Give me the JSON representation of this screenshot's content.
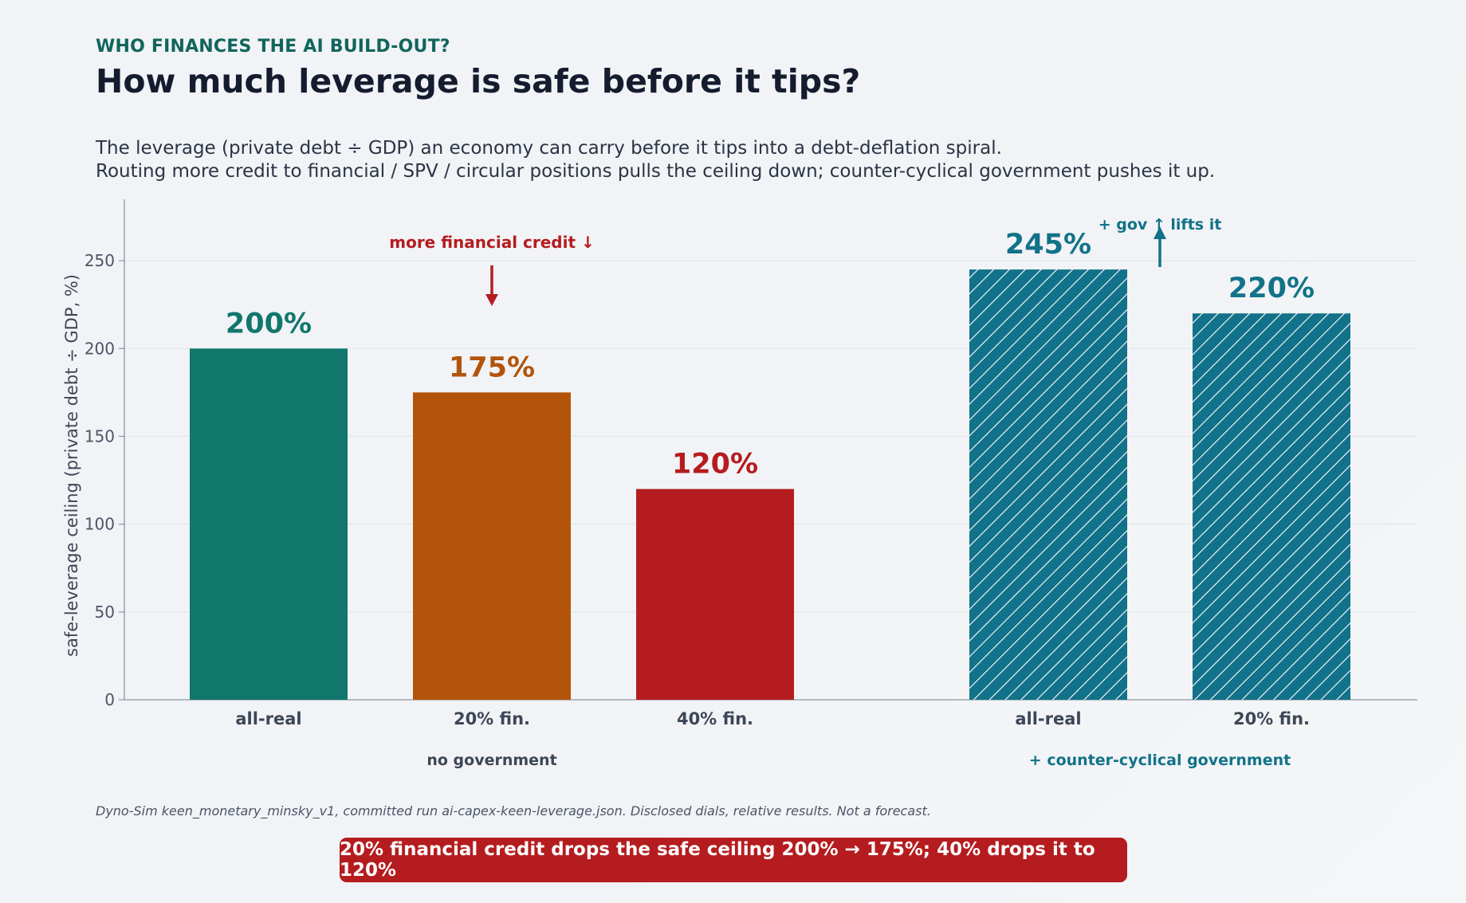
{
  "header": {
    "kicker": "WHO FINANCES THE AI BUILD-OUT?",
    "title": "How much leverage is safe before it tips?",
    "subtitle_line1": "The leverage (private debt ÷ GDP) an economy can carry before it tips into a debt-deflation spiral.",
    "subtitle_line2": "Routing more credit to financial / SPV / circular positions pulls the ceiling down; counter-cyclical government pushes it up."
  },
  "chart_data": {
    "type": "bar",
    "ylabel": "safe-leverage ceiling  (private debt ÷ GDP, %)",
    "ylim": [
      0,
      285
    ],
    "yticks": [
      0,
      50,
      100,
      150,
      200,
      250
    ],
    "grid": true,
    "groups": [
      {
        "label": "no government",
        "bars": [
          {
            "category": "all-real",
            "value": 200,
            "label": "200%",
            "color": "#11776d",
            "hatched": false
          },
          {
            "category": "20% fin.",
            "value": 175,
            "label": "175%",
            "color": "#b3540a",
            "hatched": false
          },
          {
            "category": "40% fin.",
            "value": 120,
            "label": "120%",
            "color": "#b51c1f",
            "hatched": false
          }
        ]
      },
      {
        "label": "+ counter-cyclical government",
        "bars": [
          {
            "category": "all-real",
            "value": 245,
            "label": "245%",
            "color": "#127289",
            "hatched": true
          },
          {
            "category": "20% fin.",
            "value": 220,
            "label": "220%",
            "color": "#127289",
            "hatched": true
          }
        ]
      }
    ],
    "annotations": [
      {
        "text": "more financial credit ↓",
        "color": "#b51c1f",
        "direction": "down",
        "near": "20% fin."
      },
      {
        "text": "+ gov ↑ lifts it",
        "color": "#127289",
        "direction": "up",
        "near": "+ counter-cyclical government"
      }
    ]
  },
  "colors": {
    "group_label_no_gov": "#3d4656",
    "group_label_gov": "#127289",
    "axis": "#8e96a3",
    "grid": "#e3e6ea",
    "tick_label": "#4c5566"
  },
  "footnote": "Dyno-Sim keen_monetary_minsky_v1, committed run ai-capex-keen-leverage.json.  Disclosed dials, relative results.  Not a forecast.",
  "callout": "20% financial credit drops the safe ceiling 200% → 175%; 40% drops it to 120%"
}
